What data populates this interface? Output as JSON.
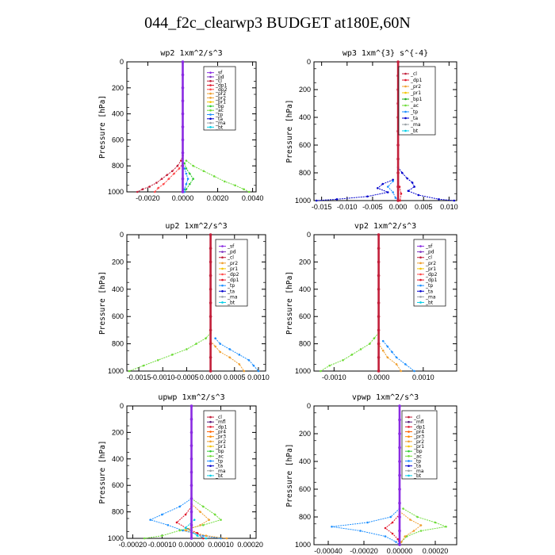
{
  "figure": {
    "title": "044_f2c_clearwp3  BUDGET at180E,60N"
  },
  "colors": {
    "sf": "#8a2be2",
    "pd": "#7b2fbe",
    "cl": "#c21f3a",
    "dp1": "#e0162b",
    "dp2": "#ff4a4a",
    "dp3": "#ff6a6a",
    "dp4": "#d63a5a",
    "pr1": "#f5c400",
    "pr2": "#f0a030",
    "pr3": "#ff8c00",
    "pr4": "#ff6000",
    "bp": "#32cd32",
    "bp1": "#1faa1f",
    "ac": "#6fdc3a",
    "tp": "#1e90ff",
    "ta": "#0000cd",
    "ma": "#9aa0a6",
    "bt": "#00cfe8",
    "mfl": "#5a1a7a",
    "accent": "#b22222"
  },
  "chart_data": [
    {
      "type": "line",
      "title": "wp2  1xm^2/s^3",
      "ylabel": "Pressure  [hPa]",
      "ylim": [
        1000,
        0
      ],
      "xlim": [
        -0.0032,
        0.0042
      ],
      "xticks": [
        "-0.0020",
        "0.0000",
        "0.0020",
        "0.0040"
      ],
      "xtick_values": [
        -0.002,
        0.0,
        0.002,
        0.004
      ],
      "yticks": [
        "0",
        "200",
        "400",
        "600",
        "800",
        "1000"
      ],
      "legend": [
        "_sf",
        "_pd",
        "_cl",
        "_dp1",
        "_dp2",
        "_pr2",
        "_pr2",
        "_pr1",
        "_bp",
        "_ac",
        "_tp",
        "_ta",
        "_ma",
        "_bt"
      ],
      "legend_position": "top-right",
      "series": [
        {
          "color_key": "cl",
          "y": [
            720,
            760,
            800,
            840,
            870,
            900,
            930,
            960,
            980,
            1000
          ],
          "x": [
            0.0,
            -0.0001,
            -0.0003,
            -0.0006,
            -0.0009,
            -0.0012,
            -0.0015,
            -0.0019,
            -0.0023,
            -0.0026
          ]
        },
        {
          "color_key": "dp2",
          "y": [
            780,
            820,
            860,
            900,
            940,
            970,
            1000
          ],
          "x": [
            0.0,
            -0.0002,
            -0.0005,
            -0.0008,
            -0.0011,
            -0.0014,
            -0.0016
          ]
        },
        {
          "color_key": "ac",
          "y": [
            760,
            800,
            840,
            880,
            920,
            950,
            980,
            1000
          ],
          "x": [
            0.0002,
            0.0006,
            0.0012,
            0.0018,
            0.0024,
            0.003,
            0.0035,
            0.0038
          ]
        },
        {
          "color_key": "bp",
          "y": [
            780,
            820,
            860,
            900,
            940,
            980,
            1000
          ],
          "x": [
            0.0001,
            0.0002,
            0.0004,
            0.0006,
            0.0004,
            0.0002,
            0.0001
          ]
        },
        {
          "color_key": "tp",
          "y": [
            820,
            860,
            900,
            940,
            980,
            1000
          ],
          "x": [
            0.0001,
            0.0002,
            0.0003,
            0.0002,
            0.0001,
            0.0001
          ]
        },
        {
          "color_key": "sf",
          "y": [
            0,
            100,
            200,
            300,
            400,
            500,
            600,
            700,
            800,
            900,
            1000
          ],
          "x": [
            0,
            0,
            0,
            0,
            0,
            0,
            0,
            0,
            0,
            0,
            0
          ]
        }
      ]
    },
    {
      "type": "line",
      "title": "wp3  1xm^{3} s^{-4}",
      "ylabel": "Pressure  [hPa]",
      "ylim": [
        1000,
        0
      ],
      "xlim": [
        -0.0165,
        0.0115
      ],
      "xticks": [
        "-0.015",
        "-0.010",
        "-0.005",
        "0.000",
        "0.005",
        "0.010"
      ],
      "xtick_values": [
        -0.015,
        -0.01,
        -0.005,
        0.0,
        0.005,
        0.01
      ],
      "yticks": [
        "0",
        "200",
        "400",
        "600",
        "800",
        "1000"
      ],
      "legend": [
        "_cl",
        "_dp1",
        "_pr2",
        "_pr1",
        "_bp1",
        "_ac",
        "_tp",
        "_ta",
        "_ma",
        "_bt"
      ],
      "legend_position": "top-right",
      "series": [
        {
          "color_key": "ta",
          "y": [
            760,
            800,
            840,
            870,
            900,
            930,
            960,
            990,
            1000
          ],
          "x": [
            0.0,
            0.0008,
            0.0018,
            0.0028,
            0.0032,
            0.002,
            0.004,
            0.008,
            0.011
          ]
        },
        {
          "color_key": "ta",
          "y": [
            850,
            880,
            910,
            940,
            970,
            990,
            1000
          ],
          "x": [
            -0.001,
            -0.003,
            -0.004,
            -0.002,
            -0.006,
            -0.012,
            -0.016
          ]
        },
        {
          "color_key": "tp",
          "y": [
            860,
            900,
            940,
            980,
            1000
          ],
          "x": [
            -0.001,
            -0.002,
            -0.001,
            -0.0005,
            0.0
          ]
        },
        {
          "color_key": "dp1",
          "y": [
            900,
            950,
            1000
          ],
          "x": [
            0.0003,
            0.0006,
            0.0004
          ]
        },
        {
          "color_key": "cl",
          "y": [
            0,
            100,
            200,
            300,
            400,
            500,
            600,
            700,
            800,
            900,
            1000
          ],
          "x": [
            0,
            0,
            0,
            0,
            0,
            0,
            0,
            0,
            0,
            0,
            0
          ]
        }
      ]
    },
    {
      "type": "line",
      "title": "up2  1xm^2/s^3",
      "ylabel": "Pressure  [hPa]",
      "ylim": [
        1000,
        0
      ],
      "xlim": [
        -0.00175,
        0.00115
      ],
      "xticks": [
        "-0.0015",
        "-0.0010",
        "-0.0005",
        "0.0000",
        "0.0005",
        "0.0010"
      ],
      "xtick_values": [
        -0.0015,
        -0.001,
        -0.0005,
        0.0,
        0.0005,
        0.001
      ],
      "yticks": [
        "0",
        "200",
        "400",
        "600",
        "800",
        "1000"
      ],
      "legend": [
        "_sf",
        "_pd",
        "_cl",
        "_pr2",
        "_pr1",
        "_dp2",
        "_dp1",
        "_tp",
        "_ta",
        "_ma",
        "_bt"
      ],
      "legend_position": "top-right",
      "series": [
        {
          "color_key": "ac",
          "y": [
            720,
            760,
            800,
            840,
            880,
            920,
            960,
            1000
          ],
          "x": [
            0.0,
            -0.0001,
            -0.0003,
            -0.0005,
            -0.0008,
            -0.0011,
            -0.0014,
            -0.0017
          ]
        },
        {
          "color_key": "tp",
          "y": [
            760,
            800,
            840,
            880,
            920,
            960,
            1000
          ],
          "x": [
            0.0001,
            0.0002,
            0.0004,
            0.0006,
            0.0008,
            0.0009,
            0.001
          ]
        },
        {
          "color_key": "pr2",
          "y": [
            780,
            820,
            860,
            900,
            950,
            1000
          ],
          "x": [
            0.0,
            0.0001,
            0.0002,
            0.0004,
            0.0006,
            0.0007
          ]
        },
        {
          "color_key": "cl",
          "y": [
            0,
            100,
            200,
            300,
            400,
            500,
            600,
            700,
            800,
            900,
            1000
          ],
          "x": [
            0,
            0,
            0,
            0,
            0,
            0,
            0,
            0,
            0,
            0,
            0
          ]
        }
      ]
    },
    {
      "type": "line",
      "title": "vp2  1xm^2/s^3",
      "ylabel": "Pressure  [hPa]",
      "ylim": [
        1000,
        0
      ],
      "xlim": [
        -0.00145,
        0.00175
      ],
      "xticks": [
        "-0.0010",
        "0.0000",
        "0.0010"
      ],
      "xtick_values": [
        -0.001,
        0.0,
        0.001
      ],
      "yticks": [
        "0",
        "200",
        "400",
        "600",
        "800",
        "1000"
      ],
      "legend": [
        "_sf",
        "_pd",
        "_cl",
        "_pr2",
        "_pr1",
        "_dp2",
        "_dp1",
        "_tp",
        "_ta",
        "_ma",
        "_bt"
      ],
      "legend_position": "top-right",
      "series": [
        {
          "color_key": "ac",
          "y": [
            720,
            760,
            800,
            840,
            880,
            920,
            960,
            1000
          ],
          "x": [
            0.0,
            -0.0001,
            -0.0002,
            -0.0004,
            -0.0006,
            -0.0008,
            -0.0011,
            -0.0013
          ]
        },
        {
          "color_key": "tp",
          "y": [
            780,
            820,
            860,
            900,
            950,
            1000
          ],
          "x": [
            0.0001,
            0.0002,
            0.0003,
            0.0004,
            0.0006,
            0.0008
          ]
        },
        {
          "color_key": "pr2",
          "y": [
            800,
            850,
            900,
            950,
            1000
          ],
          "x": [
            0.0,
            0.0001,
            0.0002,
            0.0004,
            0.0005
          ]
        },
        {
          "color_key": "cl",
          "y": [
            0,
            100,
            200,
            300,
            400,
            500,
            600,
            700,
            800,
            900,
            1000
          ],
          "x": [
            0,
            0,
            0,
            0,
            0,
            0,
            0,
            0,
            0,
            0,
            0
          ]
        }
      ]
    },
    {
      "type": "line",
      "title": "upwp  1xm^2/s^3",
      "ylabel": "Pressure  [hPa]",
      "ylim": [
        1000,
        0
      ],
      "xlim": [
        -0.00022,
        0.00022
      ],
      "xticks": [
        "-0.00020",
        "-0.00010",
        "0.00000",
        "0.00010",
        "0.00020"
      ],
      "xtick_values": [
        -0.0002,
        -0.0001,
        0.0,
        0.0001,
        0.0002
      ],
      "yticks": [
        "0",
        "200",
        "400",
        "600",
        "800",
        "1000"
      ],
      "legend": [
        "_cl",
        "_mfl",
        "_dp1",
        "_pr4",
        "_pr3",
        "_pr2",
        "_pr1",
        "_bp",
        "_ac",
        "_tp",
        "_ta",
        "_ma",
        "_bt"
      ],
      "legend_position": "top-right",
      "series": [
        {
          "color_key": "tp",
          "y": [
            700,
            760,
            820,
            860,
            900,
            940,
            980,
            1000
          ],
          "x": [
            0.0,
            -4e-05,
            -0.0001,
            -0.00014,
            -8e-05,
            -3e-05,
            4e-05,
            0.0001
          ]
        },
        {
          "color_key": "ac",
          "y": [
            700,
            760,
            820,
            860,
            900,
            940,
            980,
            1000
          ],
          "x": [
            0.0,
            4e-05,
            8e-05,
            0.0001,
            4e-05,
            -4e-05,
            -0.0001,
            -0.00016
          ]
        },
        {
          "color_key": "pr2",
          "y": [
            740,
            800,
            860,
            900,
            940,
            980,
            1000
          ],
          "x": [
            0.0,
            3e-05,
            6e-05,
            3e-05,
            -2e-05,
            5e-05,
            0.00012
          ]
        },
        {
          "color_key": "dp1",
          "y": [
            760,
            820,
            880,
            920,
            960,
            1000
          ],
          "x": [
            0.0,
            -2e-05,
            -5e-05,
            -2e-05,
            2e-05,
            4e-05
          ]
        },
        {
          "color_key": "bt",
          "y": [
            860,
            920,
            980,
            1000
          ],
          "x": [
            1e-05,
            -2e-05,
            2e-05,
            5e-05
          ]
        },
        {
          "color_key": "sf",
          "y": [
            0,
            100,
            200,
            300,
            400,
            500,
            600,
            700,
            800,
            900,
            1000
          ],
          "x": [
            0,
            0,
            0,
            0,
            0,
            0,
            0,
            0,
            0,
            0,
            0
          ]
        }
      ]
    },
    {
      "type": "line",
      "title": "vpwp  1xm^2/s^3",
      "ylabel": "Pressure  [hPa]",
      "ylim": [
        1000,
        0
      ],
      "xlim": [
        -0.00048,
        0.00032
      ],
      "xticks": [
        "-0.00040",
        "-0.00020",
        "0.00000",
        "0.00020"
      ],
      "xtick_values": [
        -0.0004,
        -0.0002,
        0.0,
        0.0002
      ],
      "yticks": [
        "0",
        "200",
        "400",
        "600",
        "800",
        "1000"
      ],
      "legend": [
        "_cl",
        "_mfl",
        "_dp1",
        "_pr4",
        "_pr3",
        "_pr2",
        "_pr1",
        "_bp",
        "_ac",
        "_tp",
        "_ta",
        "_ma",
        "_bt"
      ],
      "legend_position": "top-right",
      "series": [
        {
          "color_key": "tp",
          "y": [
            740,
            800,
            840,
            870,
            900,
            940,
            980,
            1000
          ],
          "x": [
            0.0,
            -5e-05,
            -0.00018,
            -0.00038,
            -0.00022,
            -8e-05,
            -2e-05,
            0.0
          ]
        },
        {
          "color_key": "ac",
          "y": [
            740,
            800,
            840,
            870,
            900,
            940,
            980,
            1000
          ],
          "x": [
            2e-05,
            0.0001,
            0.0002,
            0.00026,
            0.00012,
            4e-05,
            1e-05,
            0.0
          ]
        },
        {
          "color_key": "pr2",
          "y": [
            760,
            820,
            860,
            900,
            940,
            980,
            1000
          ],
          "x": [
            0.0,
            6e-05,
            0.00012,
            8e-05,
            3e-05,
            1e-05,
            0.0
          ]
        },
        {
          "color_key": "dp1",
          "y": [
            780,
            840,
            880,
            920,
            960,
            1000
          ],
          "x": [
            0.0,
            -4e-05,
            -8e-05,
            -4e-05,
            -1e-05,
            0.0
          ]
        },
        {
          "color_key": "sf",
          "y": [
            0,
            100,
            200,
            300,
            400,
            500,
            600,
            700,
            800,
            900,
            1000
          ],
          "x": [
            0,
            0,
            0,
            0,
            0,
            0,
            0,
            0,
            0,
            0,
            0
          ]
        }
      ]
    }
  ]
}
